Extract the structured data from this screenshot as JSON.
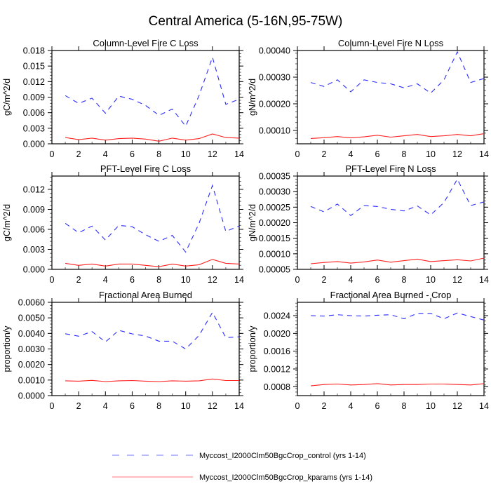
{
  "title": "Central America (5-16N,95-75W)",
  "legend": [
    {
      "label": "Myccost_I2000Clm50BgcCrop_control (yrs 1-14)",
      "color": "#3333ff",
      "style": "dashed"
    },
    {
      "label": "Myccost_I2000Clm50BgcCrop_kparams (yrs 1-14)",
      "color": "#ff2020",
      "style": "solid"
    }
  ],
  "chart_data": [
    {
      "type": "line",
      "title": "Column-Level Fire C Loss",
      "ylabel": "gC/m^2/d",
      "xlabel": "",
      "xlim": [
        0,
        14
      ],
      "xticks": [
        "0",
        "2",
        "4",
        "6",
        "8",
        "10",
        "12",
        "14"
      ],
      "ylim": [
        0,
        0.018
      ],
      "yticks": [
        "0.000",
        "0.003",
        "0.006",
        "0.009",
        "0.012",
        "0.015",
        "0.018"
      ],
      "x": [
        1,
        2,
        3,
        4,
        5,
        6,
        7,
        8,
        9,
        10,
        11,
        12,
        13,
        14
      ],
      "series": [
        {
          "name": "Myccost_I2000Clm50BgcCrop_control (yrs 1-14)",
          "values": [
            0.0093,
            0.0078,
            0.0088,
            0.0059,
            0.0092,
            0.0086,
            0.0074,
            0.0055,
            0.0067,
            0.0034,
            0.0093,
            0.0167,
            0.0076,
            0.0086
          ]
        },
        {
          "name": "Myccost_I2000Clm50BgcCrop_kparams (yrs 1-14)",
          "values": [
            0.0012,
            0.0008,
            0.0011,
            0.0007,
            0.001,
            0.0011,
            0.0009,
            0.0005,
            0.0011,
            0.0007,
            0.001,
            0.0019,
            0.0012,
            0.0011
          ]
        }
      ]
    },
    {
      "type": "line",
      "title": "Column-Level Fire N Loss",
      "ylabel": "gN/m^2/d",
      "xlabel": "",
      "xlim": [
        0,
        14
      ],
      "xticks": [
        "0",
        "2",
        "4",
        "6",
        "8",
        "10",
        "12",
        "14"
      ],
      "ylim": [
        5e-05,
        0.0004
      ],
      "yticks": [
        "0.00010",
        "0.00020",
        "0.00030",
        "0.00040"
      ],
      "x": [
        1,
        2,
        3,
        4,
        5,
        6,
        7,
        8,
        9,
        10,
        11,
        12,
        13,
        14
      ],
      "series": [
        {
          "name": "Myccost_I2000Clm50BgcCrop_control (yrs 1-14)",
          "values": [
            0.00028,
            0.000265,
            0.00029,
            0.000245,
            0.00029,
            0.00028,
            0.000275,
            0.00026,
            0.000275,
            0.00024,
            0.00029,
            0.000395,
            0.00028,
            0.000295
          ]
        },
        {
          "name": "Myccost_I2000Clm50BgcCrop_kparams (yrs 1-14)",
          "values": [
            7e-05,
            7.3e-05,
            7.7e-05,
            7.2e-05,
            7.6e-05,
            8.2e-05,
            7.5e-05,
            8e-05,
            8.5e-05,
            7.7e-05,
            8e-05,
            8.5e-05,
            8e-05,
            8.8e-05
          ]
        }
      ]
    },
    {
      "type": "line",
      "title": "PFT-Level Fire C Loss",
      "ylabel": "gC/m^2/d",
      "xlabel": "",
      "xlim": [
        0,
        14
      ],
      "xticks": [
        "0",
        "2",
        "4",
        "6",
        "8",
        "10",
        "12",
        "14"
      ],
      "ylim": [
        0,
        0.014
      ],
      "yticks": [
        "0.000",
        "0.003",
        "0.006",
        "0.009",
        "0.012"
      ],
      "x": [
        1,
        2,
        3,
        4,
        5,
        6,
        7,
        8,
        9,
        10,
        11,
        12,
        13,
        14
      ],
      "series": [
        {
          "name": "Myccost_I2000Clm50BgcCrop_control (yrs 1-14)",
          "values": [
            0.0069,
            0.0055,
            0.0065,
            0.0044,
            0.0066,
            0.0064,
            0.0052,
            0.0042,
            0.0051,
            0.0026,
            0.0069,
            0.0126,
            0.0057,
            0.0065
          ]
        },
        {
          "name": "Myccost_I2000Clm50BgcCrop_kparams (yrs 1-14)",
          "values": [
            0.0009,
            0.0006,
            0.0008,
            0.0005,
            0.0008,
            0.0008,
            0.0006,
            0.0004,
            0.0008,
            0.0005,
            0.0007,
            0.0015,
            0.0009,
            0.0008
          ]
        }
      ]
    },
    {
      "type": "line",
      "title": "PFT-Level Fire N Loss",
      "ylabel": "gN/m^2/d",
      "xlabel": "",
      "xlim": [
        0,
        14
      ],
      "xticks": [
        "0",
        "2",
        "4",
        "6",
        "8",
        "10",
        "12",
        "14"
      ],
      "ylim": [
        5e-05,
        0.00035
      ],
      "yticks": [
        "0.00005",
        "0.00010",
        "0.00015",
        "0.00020",
        "0.00025",
        "0.00030",
        "0.00035"
      ],
      "x": [
        1,
        2,
        3,
        4,
        5,
        6,
        7,
        8,
        9,
        10,
        11,
        12,
        13,
        14
      ],
      "series": [
        {
          "name": "Myccost_I2000Clm50BgcCrop_control (yrs 1-14)",
          "values": [
            0.000252,
            0.000235,
            0.00026,
            0.000223,
            0.000255,
            0.000252,
            0.000243,
            0.000238,
            0.000254,
            0.000225,
            0.000265,
            0.00034,
            0.000255,
            0.000267
          ]
        },
        {
          "name": "Myccost_I2000Clm50BgcCrop_kparams (yrs 1-14)",
          "values": [
            6.8e-05,
            7.2e-05,
            7.5e-05,
            7e-05,
            7.4e-05,
            8e-05,
            7.3e-05,
            7.8e-05,
            8.3e-05,
            7.5e-05,
            7.8e-05,
            8.1e-05,
            7.7e-05,
            8.6e-05
          ]
        }
      ]
    },
    {
      "type": "line",
      "title": "Fractional Area Burned",
      "ylabel": "proportion/y",
      "xlabel": "",
      "xlim": [
        0,
        14
      ],
      "xticks": [
        "0",
        "2",
        "4",
        "6",
        "8",
        "10",
        "12",
        "14"
      ],
      "ylim": [
        0,
        0.006
      ],
      "yticks": [
        "0.0000",
        "0.0010",
        "0.0020",
        "0.0030",
        "0.0040",
        "0.0050",
        "0.0060"
      ],
      "x": [
        1,
        2,
        3,
        4,
        5,
        6,
        7,
        8,
        9,
        10,
        11,
        12,
        13,
        14
      ],
      "series": [
        {
          "name": "Myccost_I2000Clm50BgcCrop_control (yrs 1-14)",
          "values": [
            0.00398,
            0.00382,
            0.00412,
            0.00345,
            0.0042,
            0.00397,
            0.00383,
            0.0035,
            0.0035,
            0.003,
            0.00387,
            0.00535,
            0.00373,
            0.00378
          ]
        },
        {
          "name": "Myccost_I2000Clm50BgcCrop_kparams (yrs 1-14)",
          "values": [
            0.00095,
            0.00093,
            0.00098,
            0.0009,
            0.00095,
            0.00097,
            0.00093,
            0.0009,
            0.00095,
            0.00093,
            0.00095,
            0.00107,
            0.00097,
            0.00097
          ]
        }
      ]
    },
    {
      "type": "line",
      "title": "Fractional Area Burned - Crop",
      "ylabel": "proportion/y",
      "xlabel": "",
      "xlim": [
        0,
        14
      ],
      "xticks": [
        "0",
        "2",
        "4",
        "6",
        "8",
        "10",
        "12",
        "14"
      ],
      "ylim": [
        0.0006,
        0.0027
      ],
      "yticks": [
        "0.0008",
        "0.0012",
        "0.0016",
        "0.0020",
        "0.0024"
      ],
      "x": [
        1,
        2,
        3,
        4,
        5,
        6,
        7,
        8,
        9,
        10,
        11,
        12,
        13,
        14
      ],
      "series": [
        {
          "name": "Myccost_I2000Clm50BgcCrop_control (yrs 1-14)",
          "values": [
            0.0024,
            0.00239,
            0.00242,
            0.0024,
            0.00239,
            0.00241,
            0.00242,
            0.00233,
            0.00245,
            0.00245,
            0.00233,
            0.00246,
            0.00238,
            0.0023
          ]
        },
        {
          "name": "Myccost_I2000Clm50BgcCrop_kparams (yrs 1-14)",
          "values": [
            0.00082,
            0.00085,
            0.00086,
            0.00084,
            0.00085,
            0.00087,
            0.00084,
            0.00085,
            0.00085,
            0.00086,
            0.00086,
            0.00085,
            0.00084,
            0.00087
          ]
        }
      ]
    }
  ]
}
